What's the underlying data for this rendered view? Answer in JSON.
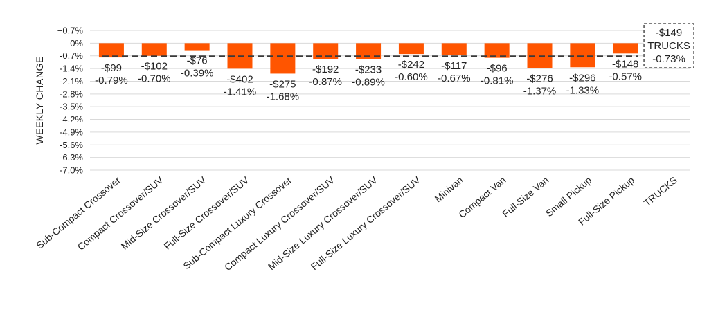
{
  "chart_data": {
    "type": "bar",
    "ylabel": "WEEKLY CHANGE",
    "ylim": [
      -7.0,
      0.7
    ],
    "yticks": [
      "+0.7%",
      "0%",
      "-0.7%",
      "-1.4%",
      "-2.1%",
      "-2.8%",
      "-3.5%",
      "-4.2%",
      "-4.9%",
      "-5.6%",
      "-6.3%",
      "-7.0%"
    ],
    "grid": true,
    "bar_color": "#ff5500",
    "categories": [
      "Sub-Compact Crossover",
      "Compact Crossover/SUV",
      "Mid-Size Crossover/SUV",
      "Full-Size Crossover/SUV",
      "Sub-Compact Luxury Crossover",
      "Compact Luxury Crossover/SUV",
      "Mid-Size Luxury Crossover/SUV",
      "Full-Size Luxury Crossover/SUV",
      "Minivan",
      "Compact Van",
      "Full-Size Van",
      "Small Pickup",
      "Full-Size Pickup",
      "TRUCKS"
    ],
    "values": [
      -0.79,
      -0.7,
      -0.39,
      -1.41,
      -1.68,
      -0.87,
      -0.89,
      -0.6,
      -0.67,
      -0.81,
      -1.37,
      -1.33,
      -0.57,
      null
    ],
    "dollar_labels": [
      "-$99",
      "-$102",
      "-$76",
      "-$402",
      "-$275",
      "-$192",
      "-$233",
      "-$242",
      "-$117",
      "-$96",
      "-$276",
      "-$296",
      "-$148",
      "-$149"
    ],
    "percent_labels": [
      "-0.79%",
      "-0.70%",
      "-0.39%",
      "-1.41%",
      "-1.68%",
      "-0.87%",
      "-0.89%",
      "-0.60%",
      "-0.67%",
      "-0.81%",
      "-1.37%",
      "-1.33%",
      "-0.57%",
      "-0.73%"
    ],
    "average": {
      "label": "TRUCKS",
      "value": -0.73,
      "dollar_label": "-$149",
      "percent_label": "-0.73%"
    }
  }
}
